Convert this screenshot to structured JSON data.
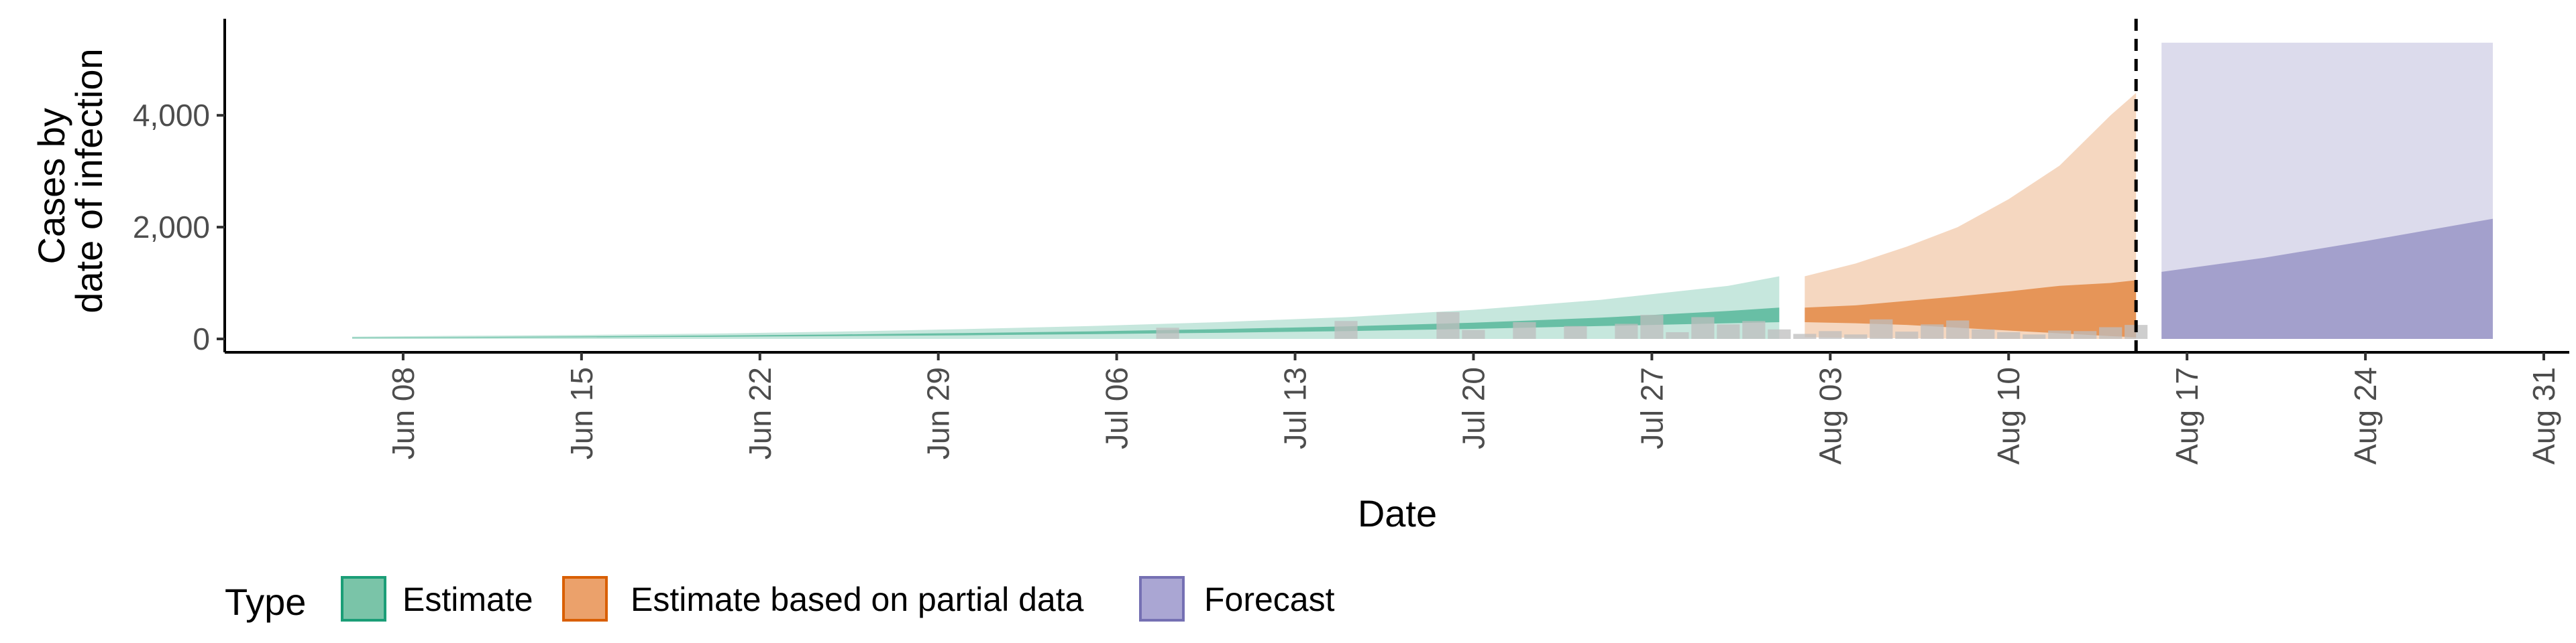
{
  "chart_data": {
    "type": "area",
    "title": "",
    "xlabel": "Date",
    "ylabel": [
      "Cases by",
      "date of infection"
    ],
    "x_range": [
      "2020-06-01",
      "2020-09-01"
    ],
    "ylim": [
      0,
      5500
    ],
    "x_ticks": [
      {
        "date": "2020-06-08",
        "label": "Jun 08"
      },
      {
        "date": "2020-06-15",
        "label": "Jun 15"
      },
      {
        "date": "2020-06-22",
        "label": "Jun 22"
      },
      {
        "date": "2020-06-29",
        "label": "Jun 29"
      },
      {
        "date": "2020-07-06",
        "label": "Jul 06"
      },
      {
        "date": "2020-07-13",
        "label": "Jul 13"
      },
      {
        "date": "2020-07-20",
        "label": "Jul 20"
      },
      {
        "date": "2020-07-27",
        "label": "Jul 27"
      },
      {
        "date": "2020-08-03",
        "label": "Aug 03"
      },
      {
        "date": "2020-08-10",
        "label": "Aug 10"
      },
      {
        "date": "2020-08-17",
        "label": "Aug 17"
      },
      {
        "date": "2020-08-24",
        "label": "Aug 24"
      },
      {
        "date": "2020-08-31",
        "label": "Aug 31"
      }
    ],
    "y_ticks": [
      {
        "value": 0,
        "label": "0"
      },
      {
        "value": 2000,
        "label": "2,000"
      },
      {
        "value": 4000,
        "label": "4,000"
      }
    ],
    "vline_date": "2020-08-15",
    "legend": {
      "title": "Type",
      "position": "bottom",
      "entries": [
        {
          "label": "Estimate",
          "fill": "#7ac4a8",
          "stroke": "#1b9e77"
        },
        {
          "label": "Estimate based on partial data",
          "fill": "#eba16b",
          "stroke": "#d95f02"
        },
        {
          "label": "Forecast",
          "fill": "#aaa6d3",
          "stroke": "#7570b3"
        }
      ]
    },
    "series": [
      {
        "name": "Estimate",
        "fill": "#1b9e77",
        "dates": [
          "2020-06-06",
          "2020-06-10",
          "2020-06-15",
          "2020-06-20",
          "2020-06-25",
          "2020-06-30",
          "2020-07-05",
          "2020-07-10",
          "2020-07-15",
          "2020-07-20",
          "2020-07-25",
          "2020-07-30",
          "2020-08-01"
        ],
        "outer_lower": [
          0,
          0,
          0,
          0,
          0,
          0,
          0,
          0,
          0,
          0,
          0,
          0,
          0
        ],
        "outer_upper": [
          40,
          55,
          70,
          95,
          130,
          175,
          230,
          300,
          390,
          520,
          700,
          950,
          1120
        ],
        "inner_lower": [
          15,
          20,
          28,
          38,
          50,
          65,
          85,
          110,
          140,
          180,
          230,
          280,
          300
        ],
        "inner_upper": [
          25,
          32,
          45,
          60,
          80,
          105,
          135,
          175,
          225,
          290,
          380,
          500,
          560
        ]
      },
      {
        "name": "Estimate based on partial data",
        "fill": "#d95f02",
        "dates": [
          "2020-08-02",
          "2020-08-04",
          "2020-08-06",
          "2020-08-08",
          "2020-08-10",
          "2020-08-12",
          "2020-08-14",
          "2020-08-15"
        ],
        "outer_lower": [
          30,
          20,
          10,
          5,
          0,
          0,
          0,
          0
        ],
        "outer_upper": [
          1120,
          1350,
          1650,
          2000,
          2500,
          3100,
          4000,
          4400
        ],
        "inner_lower": [
          300,
          280,
          250,
          200,
          150,
          100,
          50,
          30
        ],
        "inner_upper": [
          560,
          600,
          680,
          760,
          850,
          950,
          1000,
          1050
        ]
      },
      {
        "name": "Forecast",
        "fill": "#7570b3",
        "dates": [
          "2020-08-16",
          "2020-08-20",
          "2020-08-24",
          "2020-08-29"
        ],
        "outer_lower": [
          0,
          0,
          0,
          0
        ],
        "outer_upper": [
          5300,
          5300,
          5300,
          5300
        ],
        "inner_lower": [
          0,
          0,
          0,
          0
        ],
        "inner_upper": [
          1200,
          1450,
          1750,
          2150
        ]
      }
    ],
    "observed_bars": {
      "color": "#bdbdbd",
      "dates": [
        "2020-07-08",
        "2020-07-15",
        "2020-07-19",
        "2020-07-20",
        "2020-07-22",
        "2020-07-24",
        "2020-07-26",
        "2020-07-27",
        "2020-07-28",
        "2020-07-29",
        "2020-07-30",
        "2020-07-31",
        "2020-08-01",
        "2020-08-02",
        "2020-08-03",
        "2020-08-04",
        "2020-08-05",
        "2020-08-06",
        "2020-08-07",
        "2020-08-08",
        "2020-08-09",
        "2020-08-10",
        "2020-08-11",
        "2020-08-12",
        "2020-08-13",
        "2020-08-14",
        "2020-08-15"
      ],
      "values": [
        200,
        320,
        480,
        160,
        300,
        230,
        270,
        430,
        120,
        390,
        260,
        320,
        170,
        90,
        140,
        80,
        350,
        130,
        260,
        330,
        170,
        120,
        80,
        150,
        140,
        210,
        250
      ]
    }
  }
}
